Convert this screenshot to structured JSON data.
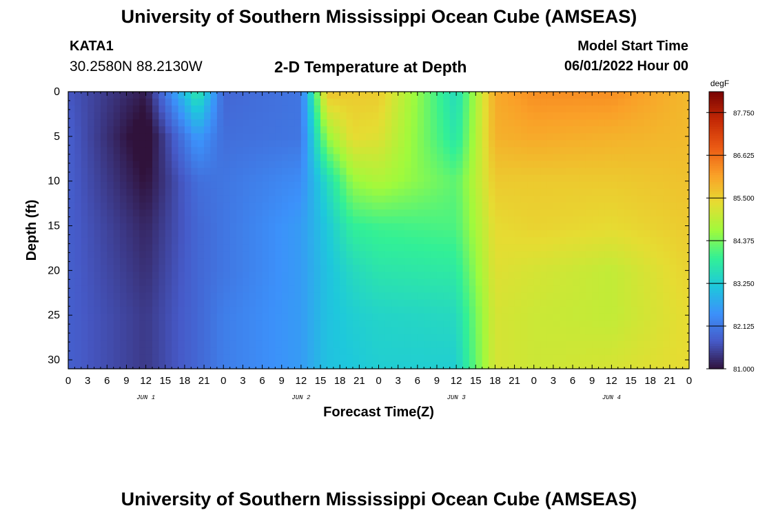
{
  "figure": {
    "title": "University of Southern Mississippi Ocean Cube (AMSEAS)",
    "station": "KATA1",
    "coordinates": "30.2580N  88.2130W",
    "plot_title": "2-D Temperature at Depth",
    "model_start_label": "Model Start Time",
    "model_start_value": "06/01/2022 Hour 00",
    "bottom_title": "University of Southern Mississippi Ocean Cube (AMSEAS)"
  },
  "chart_data": {
    "type": "heatmap",
    "title": "2-D Temperature at Depth",
    "xlabel": "Forecast Time(Z)",
    "ylabel": "Depth (ft)",
    "x_hours": [
      0,
      12,
      20,
      24,
      36,
      40,
      44,
      48,
      60,
      66,
      72,
      84,
      96
    ],
    "x_tick_labels": [
      "0",
      "3",
      "6",
      "9",
      "12",
      "15",
      "18",
      "21",
      "0",
      "3",
      "6",
      "9",
      "12",
      "15",
      "18",
      "21",
      "0",
      "3",
      "6",
      "9",
      "12",
      "15",
      "18",
      "21",
      "0",
      "3",
      "6",
      "9",
      "12",
      "15",
      "18",
      "21",
      "0"
    ],
    "day_labels": [
      "JUN 1",
      "JUN 2",
      "JUN 3",
      "JUN 4"
    ],
    "y_depth_ft": [
      0,
      5,
      10,
      15,
      20,
      25,
      31
    ],
    "y_tick_labels": [
      "0",
      "5",
      "10",
      "15",
      "20",
      "25",
      "30"
    ],
    "ylim": [
      31,
      0
    ],
    "temperature_degF": [
      [
        81.7,
        81.1,
        83.8,
        81.9,
        82.1,
        85.7,
        85.6,
        85.6,
        83.5,
        86.0,
        86.3,
        86.3,
        85.8
      ],
      [
        81.8,
        80.8,
        82.6,
        82.0,
        82.1,
        84.6,
        85.4,
        85.3,
        83.7,
        85.9,
        86.0,
        85.9,
        85.8
      ],
      [
        81.8,
        81.0,
        82.0,
        82.1,
        82.4,
        83.5,
        84.6,
        84.8,
        84.2,
        85.6,
        85.6,
        85.6,
        85.7
      ],
      [
        81.8,
        81.2,
        81.9,
        82.1,
        82.6,
        83.2,
        83.9,
        84.0,
        84.1,
        85.4,
        85.5,
        85.4,
        85.6
      ],
      [
        81.8,
        81.3,
        81.9,
        82.1,
        82.6,
        83.1,
        83.5,
        83.7,
        83.8,
        85.3,
        85.2,
        85.0,
        85.5
      ],
      [
        81.8,
        81.4,
        81.9,
        82.2,
        82.6,
        83.1,
        83.3,
        83.4,
        83.5,
        85.2,
        85.1,
        85.0,
        85.4
      ],
      [
        81.8,
        81.4,
        81.9,
        82.2,
        82.6,
        83.1,
        83.2,
        83.3,
        83.3,
        85.2,
        85.1,
        85.2,
        85.4
      ]
    ],
    "colorbar": {
      "unit": "degF",
      "min": 81.0,
      "max": 88.3,
      "tick_values": [
        81.0,
        82.125,
        83.25,
        84.375,
        85.5,
        86.625,
        87.75
      ],
      "tick_labels": [
        "81.000",
        "82.125",
        "83.250",
        "84.375",
        "85.500",
        "86.625",
        "87.750"
      ]
    },
    "colormap": "turbo"
  }
}
